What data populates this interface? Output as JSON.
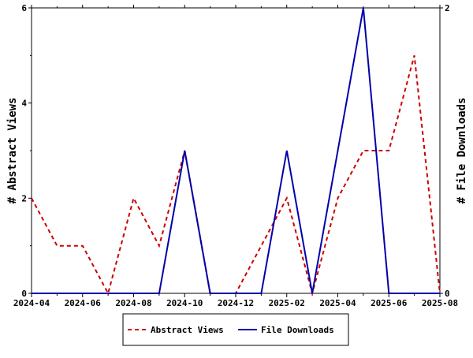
{
  "chart_data": {
    "type": "line",
    "x": [
      "2024-04",
      "2024-05",
      "2024-06",
      "2024-07",
      "2024-08",
      "2024-09",
      "2024-10",
      "2024-11",
      "2024-12",
      "2025-01",
      "2025-02",
      "2025-03",
      "2025-04",
      "2025-05",
      "2025-06",
      "2025-07",
      "2025-08"
    ],
    "x_tick_labels": [
      "2024-04",
      "2024-06",
      "2024-08",
      "2024-10",
      "2024-12",
      "2025-02",
      "2025-04",
      "2025-06",
      "2025-08"
    ],
    "series": [
      {
        "name": "Abstract Views",
        "axis": "left",
        "color": "#cc0000",
        "dash": "dashed",
        "values": [
          2,
          1,
          1,
          0,
          2,
          1,
          3,
          0,
          0,
          1,
          2,
          0,
          2,
          3,
          3,
          5,
          0
        ]
      },
      {
        "name": "File Downloads",
        "axis": "right",
        "color": "#0000aa",
        "dash": "solid",
        "values": [
          0,
          0,
          0,
          0,
          0,
          0,
          1,
          0,
          0,
          0,
          1,
          0,
          1,
          2,
          0,
          0,
          0
        ]
      }
    ],
    "ylabel_left": "# Abstract Views",
    "ylabel_right": "# File Downloads",
    "ylim_left": [
      0,
      6
    ],
    "yticks_left": [
      "0",
      "2",
      "4",
      "6"
    ],
    "ylim_right": [
      0,
      2
    ],
    "yticks_right": [
      "0",
      "2"
    ],
    "grid": false,
    "legend_position": "bottom-center"
  }
}
